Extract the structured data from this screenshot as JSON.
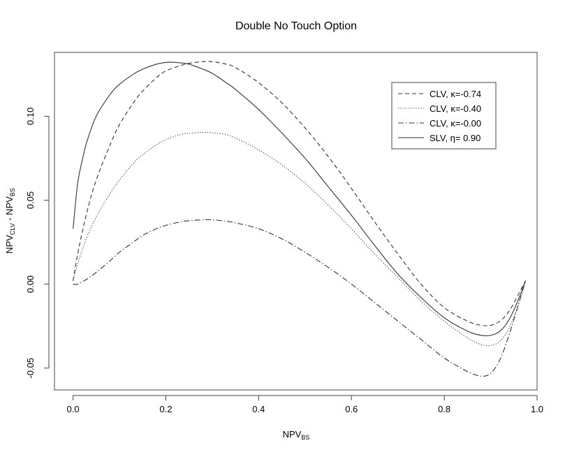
{
  "chart_data": {
    "type": "line",
    "title": "Double No Touch Option",
    "xlabel": {
      "main": "NPV",
      "sub": "BS"
    },
    "ylabel": {
      "a": "NPV",
      "a_sub": "CLV",
      "sep": " - ",
      "b": "NPV",
      "b_sub": "BS"
    },
    "xlim": [
      -0.04,
      1.0
    ],
    "ylim": [
      -0.063,
      0.138
    ],
    "xticks": [
      0.0,
      0.2,
      0.4,
      0.6,
      0.8,
      1.0
    ],
    "xtick_labels": [
      "0.0",
      "0.2",
      "0.4",
      "0.6",
      "0.8",
      "1.0"
    ],
    "yticks": [
      -0.05,
      0.0,
      0.05,
      0.1
    ],
    "ytick_labels": [
      "-0.05",
      "0.00",
      "0.05",
      "0.10"
    ],
    "grid": false,
    "legend_position": "top-right",
    "series": [
      {
        "name": "CLV, κ=-0.74",
        "dash": "dashed",
        "x": [
          0.0,
          0.01,
          0.03,
          0.05,
          0.08,
          0.1,
          0.13,
          0.15,
          0.18,
          0.2,
          0.23,
          0.25,
          0.28,
          0.3,
          0.33,
          0.35,
          0.4,
          0.45,
          0.5,
          0.55,
          0.6,
          0.65,
          0.7,
          0.75,
          0.8,
          0.85,
          0.88,
          0.9,
          0.92,
          0.94,
          0.96,
          0.975
        ],
        "y": [
          0.002,
          0.018,
          0.043,
          0.062,
          0.083,
          0.095,
          0.108,
          0.115,
          0.123,
          0.127,
          0.13,
          0.1315,
          0.1325,
          0.1325,
          0.131,
          0.129,
          0.12,
          0.108,
          0.093,
          0.076,
          0.057,
          0.037,
          0.018,
          0.0,
          -0.014,
          -0.022,
          -0.0245,
          -0.0245,
          -0.022,
          -0.016,
          -0.006,
          0.002
        ]
      },
      {
        "name": "CLV, κ=-0.40",
        "dash": "dotted",
        "x": [
          0.0,
          0.01,
          0.03,
          0.05,
          0.08,
          0.1,
          0.13,
          0.15,
          0.18,
          0.2,
          0.23,
          0.25,
          0.28,
          0.3,
          0.33,
          0.35,
          0.4,
          0.45,
          0.5,
          0.55,
          0.6,
          0.65,
          0.7,
          0.75,
          0.8,
          0.85,
          0.88,
          0.9,
          0.92,
          0.94,
          0.96,
          0.975
        ],
        "y": [
          0.002,
          0.012,
          0.028,
          0.04,
          0.054,
          0.062,
          0.072,
          0.077,
          0.083,
          0.086,
          0.089,
          0.0898,
          0.0903,
          0.0902,
          0.089,
          0.087,
          0.08,
          0.071,
          0.06,
          0.047,
          0.033,
          0.018,
          0.004,
          -0.01,
          -0.022,
          -0.032,
          -0.036,
          -0.0365,
          -0.034,
          -0.026,
          -0.012,
          0.002
        ]
      },
      {
        "name": "CLV, κ=-0.00",
        "dash": "dashdot",
        "x": [
          0.0,
          0.01,
          0.03,
          0.05,
          0.08,
          0.1,
          0.13,
          0.15,
          0.18,
          0.2,
          0.23,
          0.25,
          0.28,
          0.3,
          0.33,
          0.35,
          0.4,
          0.45,
          0.5,
          0.55,
          0.6,
          0.65,
          0.7,
          0.75,
          0.8,
          0.85,
          0.88,
          0.9,
          0.92,
          0.94,
          0.96,
          0.975
        ],
        "y": [
          0.0,
          0.0,
          0.003,
          0.007,
          0.014,
          0.019,
          0.025,
          0.029,
          0.033,
          0.035,
          0.037,
          0.0378,
          0.0383,
          0.0383,
          0.0375,
          0.0365,
          0.033,
          0.027,
          0.019,
          0.01,
          0.0,
          -0.011,
          -0.022,
          -0.033,
          -0.044,
          -0.052,
          -0.0548,
          -0.053,
          -0.045,
          -0.03,
          -0.012,
          0.002
        ]
      },
      {
        "name": "SLV, η= 0.90",
        "dash": "solid",
        "x": [
          0.0,
          0.01,
          0.02,
          0.03,
          0.05,
          0.08,
          0.1,
          0.13,
          0.15,
          0.18,
          0.2,
          0.21,
          0.23,
          0.25,
          0.28,
          0.3,
          0.33,
          0.35,
          0.4,
          0.45,
          0.5,
          0.55,
          0.6,
          0.65,
          0.7,
          0.75,
          0.8,
          0.85,
          0.88,
          0.9,
          0.92,
          0.94,
          0.96,
          0.975
        ],
        "y": [
          0.033,
          0.06,
          0.074,
          0.085,
          0.1,
          0.113,
          0.119,
          0.125,
          0.128,
          0.131,
          0.132,
          0.1322,
          0.1318,
          0.131,
          0.128,
          0.1255,
          0.12,
          0.116,
          0.104,
          0.09,
          0.075,
          0.058,
          0.041,
          0.023,
          0.006,
          -0.008,
          -0.02,
          -0.028,
          -0.0305,
          -0.0305,
          -0.028,
          -0.021,
          -0.009,
          0.002
        ]
      }
    ]
  }
}
